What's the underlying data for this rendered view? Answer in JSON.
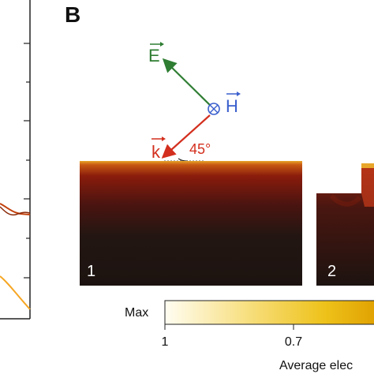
{
  "figure": {
    "panel_label": "B",
    "vectors": {
      "e_label": "E",
      "h_label": "H",
      "k_label": "k",
      "angle_label": "45°"
    },
    "map_labels": [
      "1",
      "2"
    ],
    "colorbar": {
      "max_label": "Max",
      "tick_labels": [
        "1",
        "0.7"
      ],
      "title": "Average elec"
    }
  },
  "colors": {
    "e_vector": "#2e7d32",
    "h_vector": "#3a5fcd",
    "k_vector": "#d32f1e",
    "map_dark": "#1c1310",
    "map_hot": "#e0a020",
    "curve_dark": "#c2410c",
    "curve_light": "#f6a623"
  }
}
